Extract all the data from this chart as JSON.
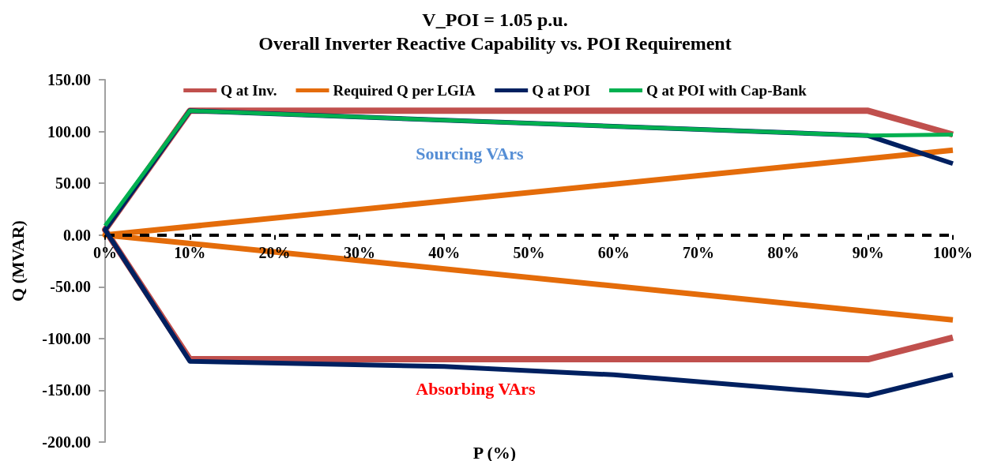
{
  "chart_data": {
    "type": "line",
    "title": "V_POI = 1.05 p.u.",
    "subtitle": "Overall Inverter Reactive Capability vs. POI Requirement",
    "xlabel": "P (%)",
    "ylabel": "Q (MVAR)",
    "xlim": [
      0,
      100
    ],
    "xticks": [
      {
        "value": 0,
        "label": "0%"
      },
      {
        "value": 10,
        "label": "10%"
      },
      {
        "value": 20,
        "label": "20%"
      },
      {
        "value": 30,
        "label": "30%"
      },
      {
        "value": 40,
        "label": "40%"
      },
      {
        "value": 50,
        "label": "50%"
      },
      {
        "value": 60,
        "label": "60%"
      },
      {
        "value": 70,
        "label": "70%"
      },
      {
        "value": 80,
        "label": "80%"
      },
      {
        "value": 90,
        "label": "90%"
      },
      {
        "value": 100,
        "label": "100%"
      }
    ],
    "ylim": [
      -200,
      150
    ],
    "yticks": [
      {
        "value": -200,
        "label": "-200.00"
      },
      {
        "value": -150,
        "label": "-150.00"
      },
      {
        "value": -100,
        "label": "-100.00"
      },
      {
        "value": -50,
        "label": "-50.00"
      },
      {
        "value": 0,
        "label": "0.00"
      },
      {
        "value": 50,
        "label": "50.00"
      },
      {
        "value": 100,
        "label": "100.00"
      },
      {
        "value": 150,
        "label": "150.00"
      }
    ],
    "series": [
      {
        "name": "Q at Inv.",
        "color": "#c0504d",
        "x": [
          100,
          90,
          10,
          0,
          10,
          90,
          100
        ],
        "values": [
          97,
          120,
          120,
          5,
          -120,
          -120,
          -99
        ]
      },
      {
        "name": "Required Q per LGIA",
        "color": "#e46c0a",
        "x": [
          100,
          0,
          100
        ],
        "values": [
          82,
          0,
          -82
        ]
      },
      {
        "name": "Q at POI",
        "color": "#002060",
        "x": [
          100,
          90,
          10,
          0,
          10,
          40,
          60,
          90,
          100
        ],
        "values": [
          69,
          96,
          120,
          5,
          -122,
          -127,
          -135,
          -155,
          -135
        ]
      },
      {
        "name": "Q at POI with Cap-Bank",
        "color": "#00b050",
        "x": [
          0,
          10,
          90,
          100
        ],
        "values": [
          9,
          120,
          96,
          97
        ]
      }
    ],
    "ref_lines": [
      {
        "axis": "y",
        "value": 0,
        "color": "#000000",
        "line_style": "dashed"
      }
    ],
    "annotations": [
      "Sourcing VArs",
      "Absorbing VArs"
    ],
    "grid": false,
    "legend": "top",
    "marker": "none",
    "line_style": "solid"
  }
}
